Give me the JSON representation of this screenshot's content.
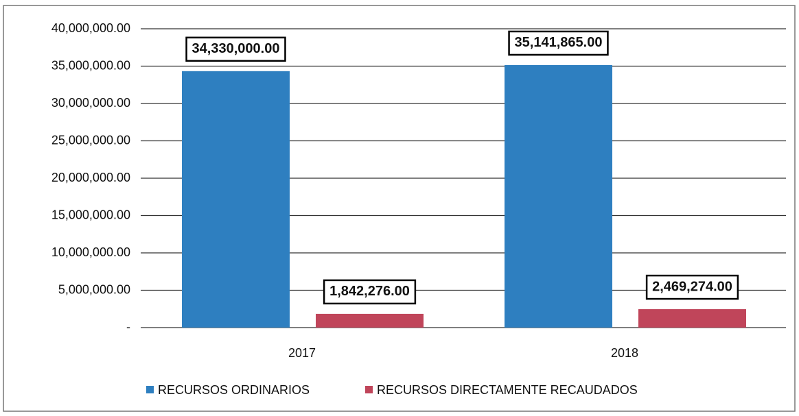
{
  "chart_data": {
    "type": "bar",
    "categories": [
      "2017",
      "2018"
    ],
    "series": [
      {
        "name": "RECURSOS ORDINARIOS",
        "color": "#2e7fc0",
        "values": [
          34330000,
          35141865
        ],
        "value_labels": [
          "34,330,000.00",
          "35,141,865.00"
        ]
      },
      {
        "name": "RECURSOS DIRECTAMENTE RECAUDADOS",
        "color": "#c0455a",
        "values": [
          1842276,
          2469274
        ],
        "value_labels": [
          "1,842,276.00",
          "2,469,274.00"
        ]
      }
    ],
    "ylim": [
      0,
      40000000
    ],
    "yticks": [
      {
        "value": 0,
        "label": "-"
      },
      {
        "value": 5000000,
        "label": "5,000,000.00"
      },
      {
        "value": 10000000,
        "label": "10,000,000.00"
      },
      {
        "value": 15000000,
        "label": "15,000,000.00"
      },
      {
        "value": 20000000,
        "label": "20,000,000.00"
      },
      {
        "value": 25000000,
        "label": "25,000,000.00"
      },
      {
        "value": 30000000,
        "label": "30,000,000.00"
      },
      {
        "value": 35000000,
        "label": "35,000,000.00"
      },
      {
        "value": 40000000,
        "label": "40,000,000.00"
      }
    ],
    "grid": true,
    "legend": "bottom"
  }
}
